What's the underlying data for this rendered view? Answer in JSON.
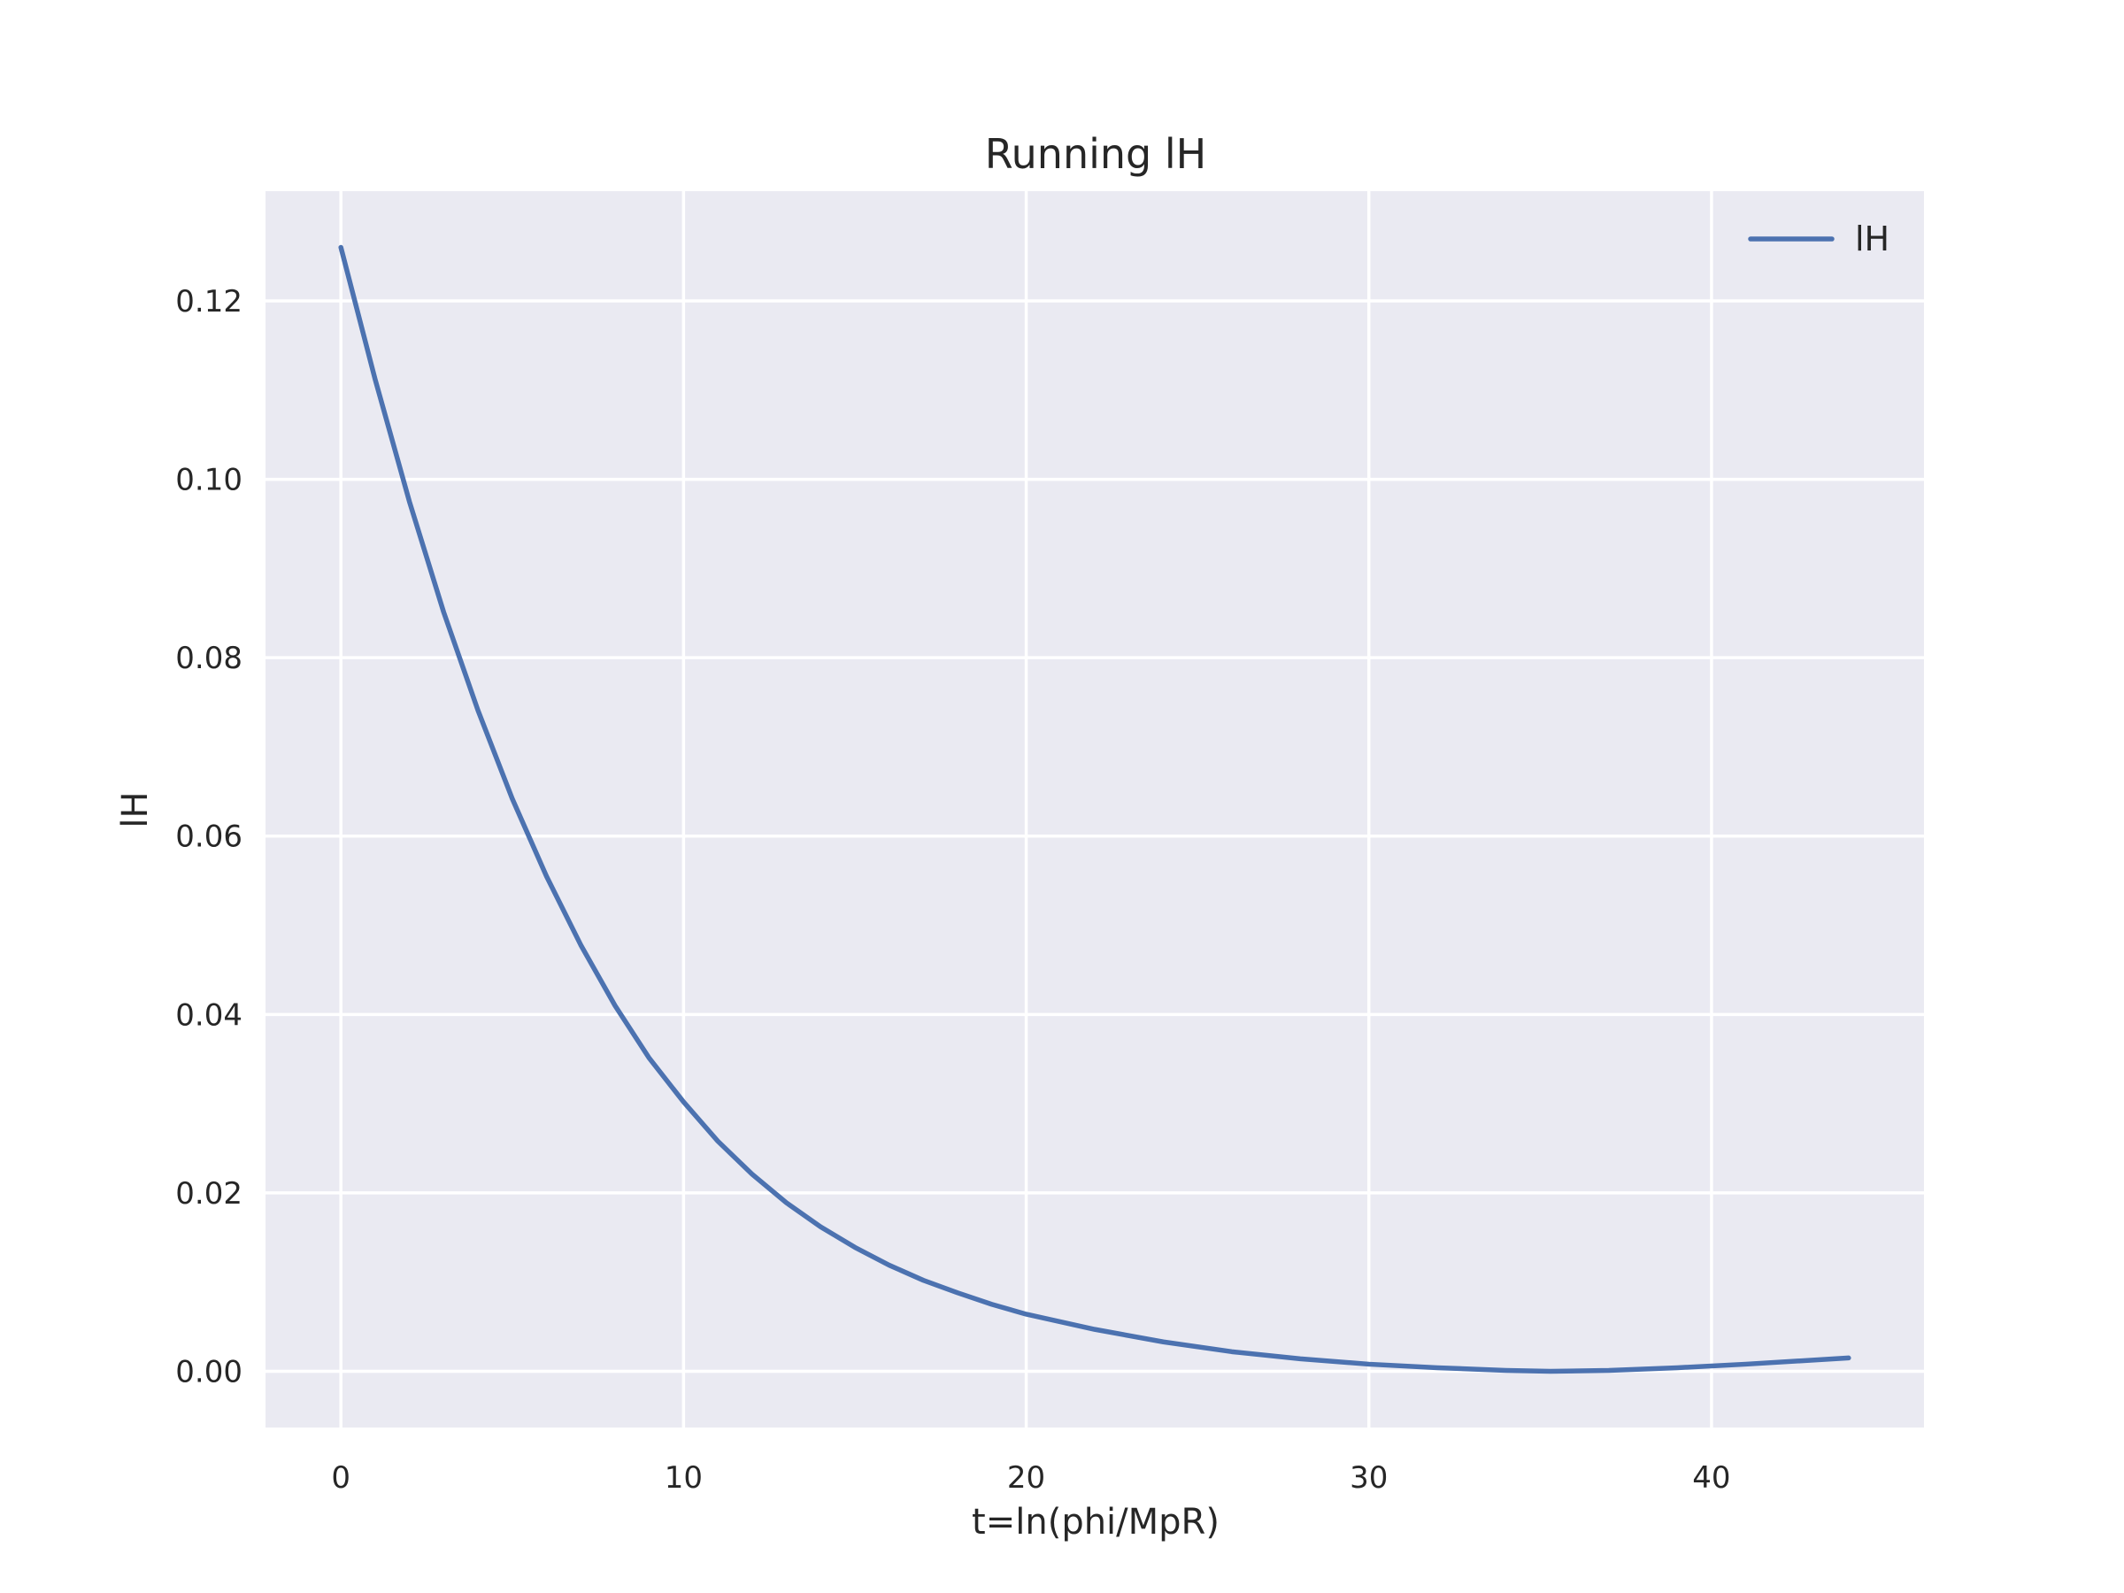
{
  "chart_data": {
    "type": "line",
    "title": "Running lH",
    "xlabel": "t=ln(phi/MpR)",
    "ylabel": "lH",
    "xlim": [
      -2.2,
      46.2
    ],
    "ylim": [
      -0.0063,
      0.1323
    ],
    "xticks": [
      0,
      10,
      20,
      30,
      40
    ],
    "xtick_labels": [
      "0",
      "10",
      "20",
      "30",
      "40"
    ],
    "yticks": [
      0.0,
      0.02,
      0.04,
      0.06,
      0.08,
      0.1,
      0.12
    ],
    "ytick_labels": [
      "0.00",
      "0.02",
      "0.04",
      "0.06",
      "0.08",
      "0.10",
      "0.12"
    ],
    "grid": true,
    "legend": {
      "position": "top-right",
      "entries": [
        "lH"
      ]
    },
    "series": [
      {
        "name": "lH",
        "color": "#4c72b0",
        "x": [
          0,
          1,
          2,
          3,
          4,
          5,
          6,
          7,
          8,
          9,
          10,
          11,
          12,
          13,
          14,
          15,
          16,
          17,
          18,
          19,
          20,
          22,
          24,
          26,
          28,
          30,
          32,
          34,
          35.3,
          37,
          39,
          41,
          44
        ],
        "y": [
          0.126,
          0.1112,
          0.0975,
          0.0851,
          0.0741,
          0.0642,
          0.0555,
          0.0478,
          0.041,
          0.0351,
          0.0302,
          0.0258,
          0.0221,
          0.0189,
          0.0162,
          0.0139,
          0.0119,
          0.0102,
          0.0088,
          0.0075,
          0.0064,
          0.0047,
          0.0033,
          0.0022,
          0.0014,
          0.0008,
          0.0004,
          0.0001,
          0.0,
          0.0001,
          0.0004,
          0.0008,
          0.0015
        ]
      }
    ]
  }
}
